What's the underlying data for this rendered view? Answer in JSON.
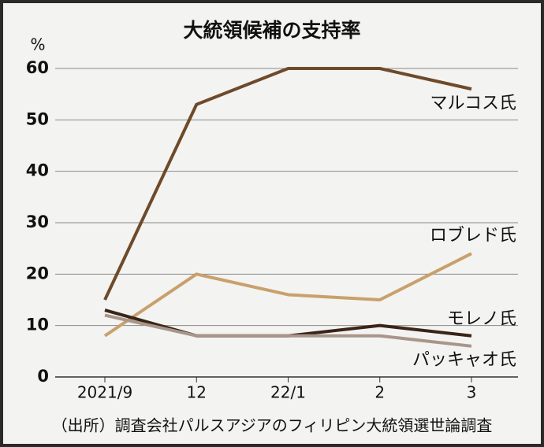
{
  "chart_data": {
    "type": "line",
    "title": "大統領候補の支持率",
    "y_label": "%",
    "categories": [
      "2021/9",
      "12",
      "22/1",
      "2",
      "3"
    ],
    "series": [
      {
        "name": "マルコス氏",
        "color": "#6e4a2a",
        "values": [
          15,
          53,
          60,
          60,
          56
        ]
      },
      {
        "name": "ロブレド氏",
        "color": "#c9a06c",
        "values": [
          8,
          20,
          16,
          15,
          24
        ]
      },
      {
        "name": "モレノ氏",
        "color": "#3a2418",
        "values": [
          13,
          8,
          8,
          10,
          8
        ]
      },
      {
        "name": "パッキャオ氏",
        "color": "#a8968a",
        "values": [
          12,
          8,
          8,
          8,
          6
        ]
      }
    ],
    "ylim": [
      0,
      60
    ],
    "yticks": [
      0,
      10,
      20,
      30,
      40,
      50,
      60
    ],
    "grid": true,
    "source": "（出所）調査会社パルスアジアのフィリピン大統領選世論調査"
  }
}
